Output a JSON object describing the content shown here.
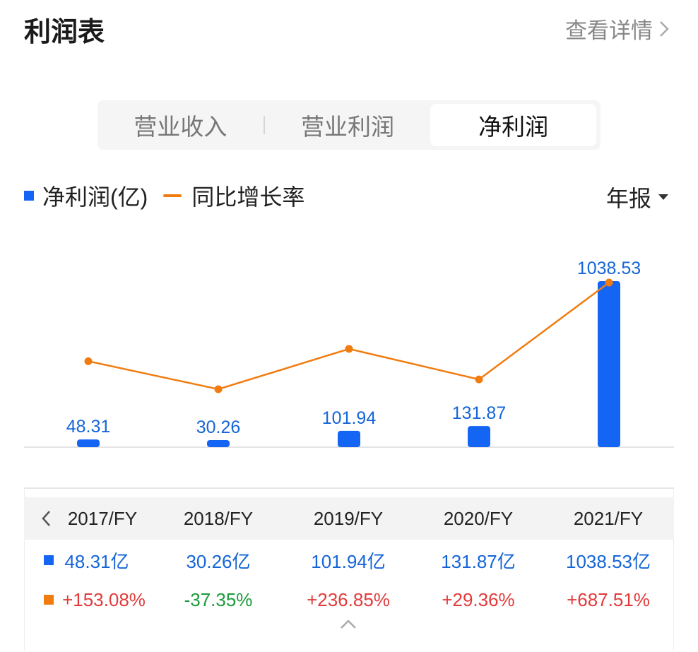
{
  "header": {
    "title": "利润表",
    "details_label": "查看详情"
  },
  "segments": [
    {
      "label": "营业收入",
      "active": false
    },
    {
      "label": "营业利润",
      "active": false
    },
    {
      "label": "净利润",
      "active": true
    }
  ],
  "legend": {
    "bar_label": "净利润(亿)",
    "line_label": "同比增长率",
    "period_label": "年报"
  },
  "colors": {
    "bar": "#1565f5",
    "line": "#f07c10",
    "positive": "#e23a3a",
    "negative": "#1a9b3a",
    "value_text": "#1565d8"
  },
  "chart_data": {
    "type": "bar",
    "categories": [
      "2017/FY",
      "2018/FY",
      "2019/FY",
      "2020/FY",
      "2021/FY"
    ],
    "series": [
      {
        "name": "净利润(亿)",
        "type": "bar",
        "values": [
          48.31,
          30.26,
          101.94,
          131.87,
          1038.53
        ]
      },
      {
        "name": "同比增长率",
        "type": "line",
        "values": [
          153.08,
          -37.35,
          236.85,
          29.36,
          687.51
        ]
      }
    ],
    "bar_labels": [
      "48.31",
      "30.26",
      "101.94",
      "131.87",
      "1038.53"
    ],
    "legend_position": "top-left"
  },
  "table": {
    "columns": [
      "2017/FY",
      "2018/FY",
      "2019/FY",
      "2020/FY",
      "2021/FY"
    ],
    "value_row": [
      "48.31亿",
      "30.26亿",
      "101.94亿",
      "131.87亿",
      "1038.53亿"
    ],
    "growth_row": [
      "+153.08%",
      "-37.35%",
      "+236.85%",
      "+29.36%",
      "+687.51%"
    ]
  }
}
